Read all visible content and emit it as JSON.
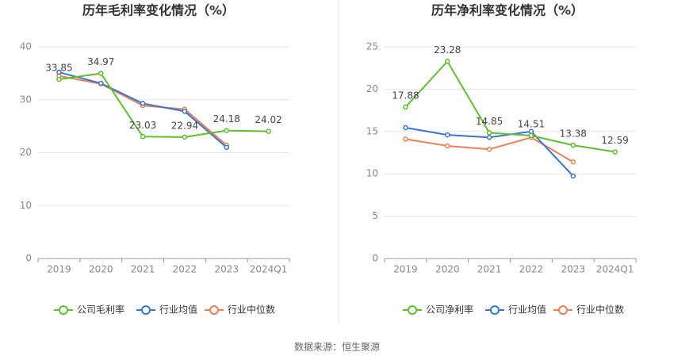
{
  "chart_data": [
    {
      "type": "line",
      "title": "历年毛利率变化情况（%）",
      "categories": [
        "2019",
        "2020",
        "2021",
        "2022",
        "2023",
        "2024Q1"
      ],
      "series": [
        {
          "name": "公司毛利率",
          "color": "#5dc12c",
          "values": [
            33.85,
            34.97,
            23.03,
            22.94,
            24.18,
            24.02
          ]
        },
        {
          "name": "行业均值",
          "color": "#3b72d6",
          "values": [
            35.2,
            33.1,
            29.3,
            27.8,
            21.0,
            null
          ]
        },
        {
          "name": "行业中位数",
          "color": "#f0804f",
          "values": [
            34.5,
            33.0,
            28.9,
            28.2,
            21.4,
            null
          ]
        }
      ],
      "ylim": [
        0,
        40
      ],
      "yticks": [
        0,
        10,
        20,
        30,
        40
      ],
      "grid": true
    },
    {
      "type": "line",
      "title": "历年净利率变化情况（%）",
      "categories": [
        "2019",
        "2020",
        "2021",
        "2022",
        "2023",
        "2024Q1"
      ],
      "series": [
        {
          "name": "公司净利率",
          "color": "#5dc12c",
          "values": [
            17.88,
            23.28,
            14.85,
            14.51,
            13.38,
            12.59
          ]
        },
        {
          "name": "行业均值",
          "color": "#3b72d6",
          "values": [
            15.45,
            14.6,
            14.3,
            15.0,
            9.74,
            null
          ]
        },
        {
          "name": "行业中位数",
          "color": "#f0804f",
          "values": [
            14.1,
            13.3,
            12.9,
            14.3,
            11.4,
            null
          ]
        }
      ],
      "ylim": [
        0,
        25
      ],
      "yticks": [
        0,
        5,
        10,
        15,
        20,
        25
      ],
      "grid": true
    }
  ],
  "source": "数据来源：恒生聚源"
}
